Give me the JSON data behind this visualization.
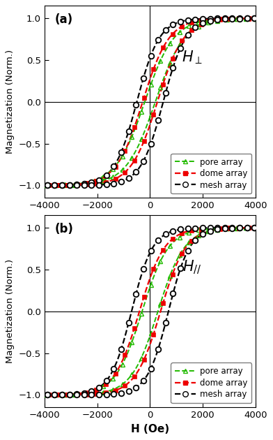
{
  "xlim": [
    -4000,
    4000
  ],
  "ylim": [
    -1.15,
    1.15
  ],
  "xlabel": "H (Oe)",
  "ylabel": "Magnetization (Norm.)",
  "yticks": [
    -1.0,
    -0.5,
    0.0,
    0.5,
    1.0
  ],
  "xticks": [
    -4000,
    -2000,
    0,
    2000,
    4000
  ],
  "panel_a_label": "(a)",
  "panel_b_label": "(b)",
  "legend_labels": [
    "pore array",
    "dome array",
    "mesh array"
  ],
  "pore_color": "#22bb00",
  "dome_color": "#ee0000",
  "mesh_color": "#000000",
  "background_color": "#ffffff",
  "panels": {
    "a": {
      "pore_Hc": 200,
      "pore_slope": 1100,
      "dome_Hc": 280,
      "dome_slope": 1000,
      "mesh_Hc": 500,
      "mesh_slope": 850
    },
    "b": {
      "pore_Hc": 300,
      "pore_slope": 1000,
      "dome_Hc": 400,
      "dome_slope": 950,
      "mesh_Hc": 700,
      "mesh_slope": 800
    }
  }
}
